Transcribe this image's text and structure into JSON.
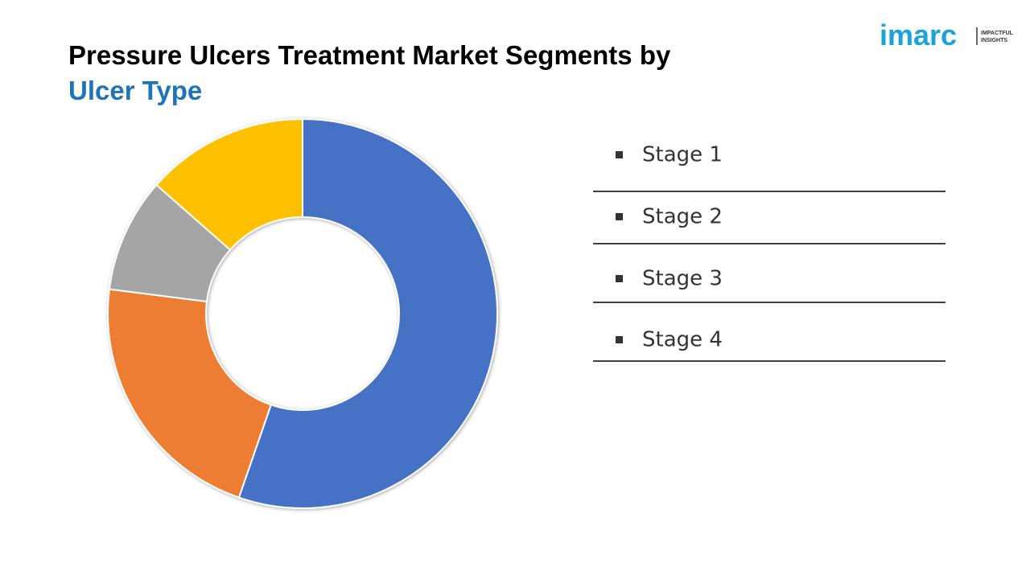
{
  "logo": {
    "brand": "imarc",
    "tagline": [
      "IMPACTFUL",
      "INSIGHTS"
    ]
  },
  "chart_data": {
    "type": "pie",
    "donut": true,
    "title": "Pressure Ulcers Treatment Market Segments by",
    "subtitle": "Ulcer Type",
    "categories": [
      "Stage 1",
      "Stage 2",
      "Stage 3",
      "Stage 4"
    ],
    "values": [
      55.3,
      21.7,
      9.5,
      13.5
    ],
    "colors": [
      "#4472c4",
      "#ed7d31",
      "#a5a5a5",
      "#ffc000"
    ],
    "legend": "right"
  }
}
